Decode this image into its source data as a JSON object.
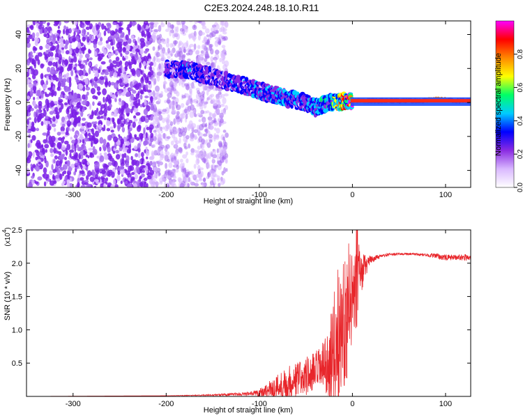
{
  "figure": {
    "title": "C2E3.2024.248.18.10.R11"
  },
  "chart_data": [
    {
      "type": "heatmap",
      "id": "spectrogram",
      "xlabel": "Height of straight line (km)",
      "ylabel": "Frequency (Hz)",
      "xlim": [
        -350,
        127
      ],
      "ylim": [
        -50,
        48
      ],
      "xticks": [
        -300,
        -200,
        -100,
        0,
        100
      ],
      "yticks": [
        -40,
        -20,
        0,
        20,
        40
      ],
      "colorbar": {
        "label": "Normalized spectral amplitude",
        "range": [
          0,
          1
        ],
        "ticks": [
          0.0,
          0.2,
          0.4,
          0.6,
          0.8
        ],
        "colormap": [
          "#ffffff",
          "#d9b8ff",
          "#8a2be2",
          "#0000ff",
          "#00ccff",
          "#00ff66",
          "#ffff00",
          "#ff8800",
          "#ff0000",
          "#ff00ff"
        ]
      },
      "main_ridge": {
        "description_points_x_km": [
          -200,
          -175,
          -150,
          -125,
          -100,
          -75,
          -50,
          -40,
          -25,
          0,
          25,
          50,
          75,
          90,
          110,
          127
        ],
        "frequency_hz": [
          20,
          19,
          15,
          11,
          7,
          3,
          0,
          -3,
          0,
          1,
          1,
          1,
          1,
          2,
          1,
          1
        ],
        "amplitude": [
          0.25,
          0.3,
          0.25,
          0.3,
          0.3,
          0.35,
          0.3,
          0.35,
          0.45,
          0.8,
          0.85,
          0.85,
          0.85,
          0.8,
          0.85,
          0.85
        ]
      },
      "noise_region_x_km": [
        -350,
        -135
      ]
    },
    {
      "type": "line",
      "id": "snr",
      "xlabel": "Height of straight line (km)",
      "ylabel": "SNR (10 * v/v)",
      "scale_label": "(x10",
      "scale_exponent": "4",
      "xlim": [
        -350,
        127
      ],
      "ylim": [
        0,
        2.5
      ],
      "xticks": [
        -300,
        -200,
        -100,
        0,
        100
      ],
      "yticks": [
        0.5,
        1.0,
        1.5,
        2.0,
        2.5
      ],
      "color": "#e8262b",
      "envelope": {
        "x": [
          -350,
          -200,
          -150,
          -110,
          -100,
          -90,
          -80,
          -70,
          -60,
          -50,
          -40,
          -30,
          -25,
          -20,
          -15,
          -10,
          -5,
          0,
          5,
          10,
          15,
          20,
          25,
          30,
          40,
          50,
          60,
          70,
          80,
          90,
          100,
          110,
          120,
          127
        ],
        "base": [
          0.0,
          0.01,
          0.02,
          0.04,
          0.06,
          0.1,
          0.15,
          0.2,
          0.25,
          0.3,
          0.35,
          0.45,
          0.5,
          0.7,
          0.9,
          1.1,
          1.3,
          1.5,
          1.7,
          1.85,
          1.98,
          2.05,
          2.08,
          2.1,
          2.13,
          2.14,
          2.14,
          2.13,
          2.12,
          2.11,
          2.08,
          2.09,
          2.09,
          2.08
        ],
        "spread": [
          0.0,
          0.0,
          0.01,
          0.03,
          0.06,
          0.12,
          0.2,
          0.25,
          0.28,
          0.3,
          0.33,
          0.4,
          0.5,
          0.9,
          1.1,
          1.0,
          1.0,
          0.8,
          0.7,
          0.3,
          0.15,
          0.06,
          0.04,
          0.03,
          0.02,
          0.02,
          0.02,
          0.02,
          0.02,
          0.04,
          0.05,
          0.04,
          0.05,
          0.03
        ]
      }
    }
  ]
}
